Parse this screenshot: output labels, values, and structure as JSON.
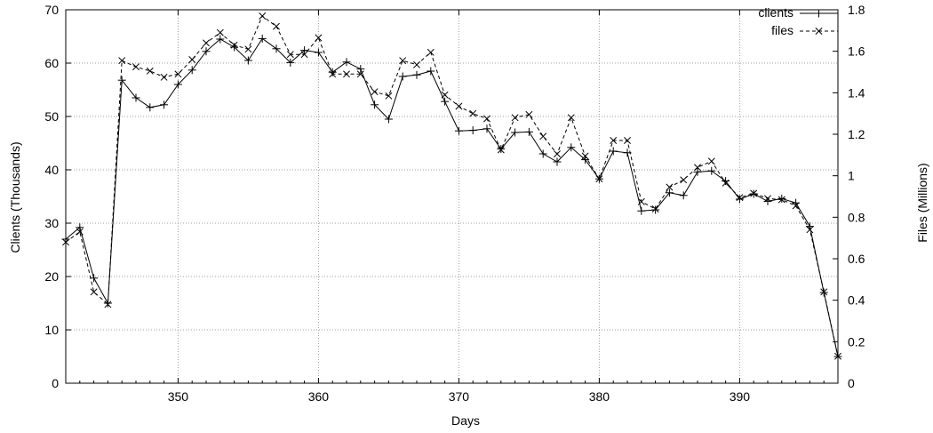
{
  "chart_data": {
    "type": "line",
    "title": "",
    "xlabel": "Days",
    "ylabel": "Clients (Thousands)",
    "y2label": "Files (Millions)",
    "xlim": [
      342,
      397
    ],
    "ylim": [
      0,
      70
    ],
    "y2lim": [
      0,
      1.8
    ],
    "x_ticks": [
      "350",
      "360",
      "370",
      "380",
      "390"
    ],
    "y_ticks": [
      "0",
      "10",
      "20",
      "30",
      "40",
      "50",
      "60",
      "70"
    ],
    "y2_ticks": [
      "0",
      "0.2",
      "0.4",
      "0.6",
      "0.8",
      "1",
      "1.2",
      "1.4",
      "1.6",
      "1.8"
    ],
    "grid": true,
    "legend_position": "top-right",
    "series": [
      {
        "name": "clients",
        "axis": "left",
        "style": "solid",
        "marker": "plus",
        "color": "#000000",
        "x": [
          342,
          343,
          344,
          345,
          346,
          347,
          348,
          349,
          350,
          351,
          352,
          353,
          354,
          355,
          356,
          357,
          358,
          359,
          360,
          361,
          362,
          363,
          364,
          365,
          366,
          367,
          368,
          369,
          370,
          371,
          372,
          373,
          374,
          375,
          376,
          377,
          378,
          379,
          380,
          381,
          382,
          383,
          384,
          385,
          386,
          387,
          388,
          389,
          390,
          391,
          392,
          393,
          394,
          395,
          396,
          397
        ],
        "y": [
          27.0,
          29.2,
          19.7,
          15.0,
          56.8,
          53.5,
          51.7,
          52.2,
          56.0,
          58.7,
          62.2,
          64.5,
          63.0,
          60.5,
          64.6,
          62.7,
          60.1,
          62.4,
          62.0,
          58.3,
          60.2,
          58.9,
          52.2,
          49.5,
          57.5,
          57.8,
          58.5,
          52.8,
          47.3,
          47.4,
          47.7,
          43.9,
          47.0,
          47.1,
          43.0,
          41.5,
          44.2,
          41.9,
          38.3,
          43.5,
          43.2,
          32.3,
          32.5,
          35.7,
          35.2,
          39.6,
          39.8,
          37.9,
          34.5,
          35.5,
          34.1,
          34.6,
          33.8,
          29.4,
          17.0,
          5.0
        ]
      },
      {
        "name": "files",
        "axis": "right",
        "style": "dashed",
        "marker": "cross",
        "color": "#000000",
        "x": [
          342,
          343,
          344,
          345,
          346,
          347,
          348,
          349,
          350,
          351,
          352,
          353,
          354,
          355,
          356,
          357,
          358,
          359,
          360,
          361,
          362,
          363,
          364,
          365,
          366,
          367,
          368,
          369,
          370,
          371,
          372,
          373,
          374,
          375,
          376,
          377,
          378,
          379,
          380,
          381,
          382,
          383,
          384,
          385,
          386,
          387,
          388,
          389,
          390,
          391,
          392,
          393,
          394,
          395,
          396,
          397
        ],
        "y": [
          0.68,
          0.73,
          0.44,
          0.38,
          1.555,
          1.525,
          1.505,
          1.475,
          1.49,
          1.56,
          1.64,
          1.69,
          1.63,
          1.61,
          1.77,
          1.72,
          1.585,
          1.585,
          1.665,
          1.49,
          1.49,
          1.49,
          1.405,
          1.385,
          1.555,
          1.535,
          1.595,
          1.39,
          1.335,
          1.3,
          1.275,
          1.125,
          1.28,
          1.295,
          1.19,
          1.105,
          1.28,
          1.095,
          0.985,
          1.17,
          1.17,
          0.875,
          0.84,
          0.945,
          0.98,
          1.04,
          1.07,
          0.965,
          0.895,
          0.915,
          0.89,
          0.885,
          0.855,
          0.74,
          0.44,
          0.13
        ]
      }
    ]
  }
}
